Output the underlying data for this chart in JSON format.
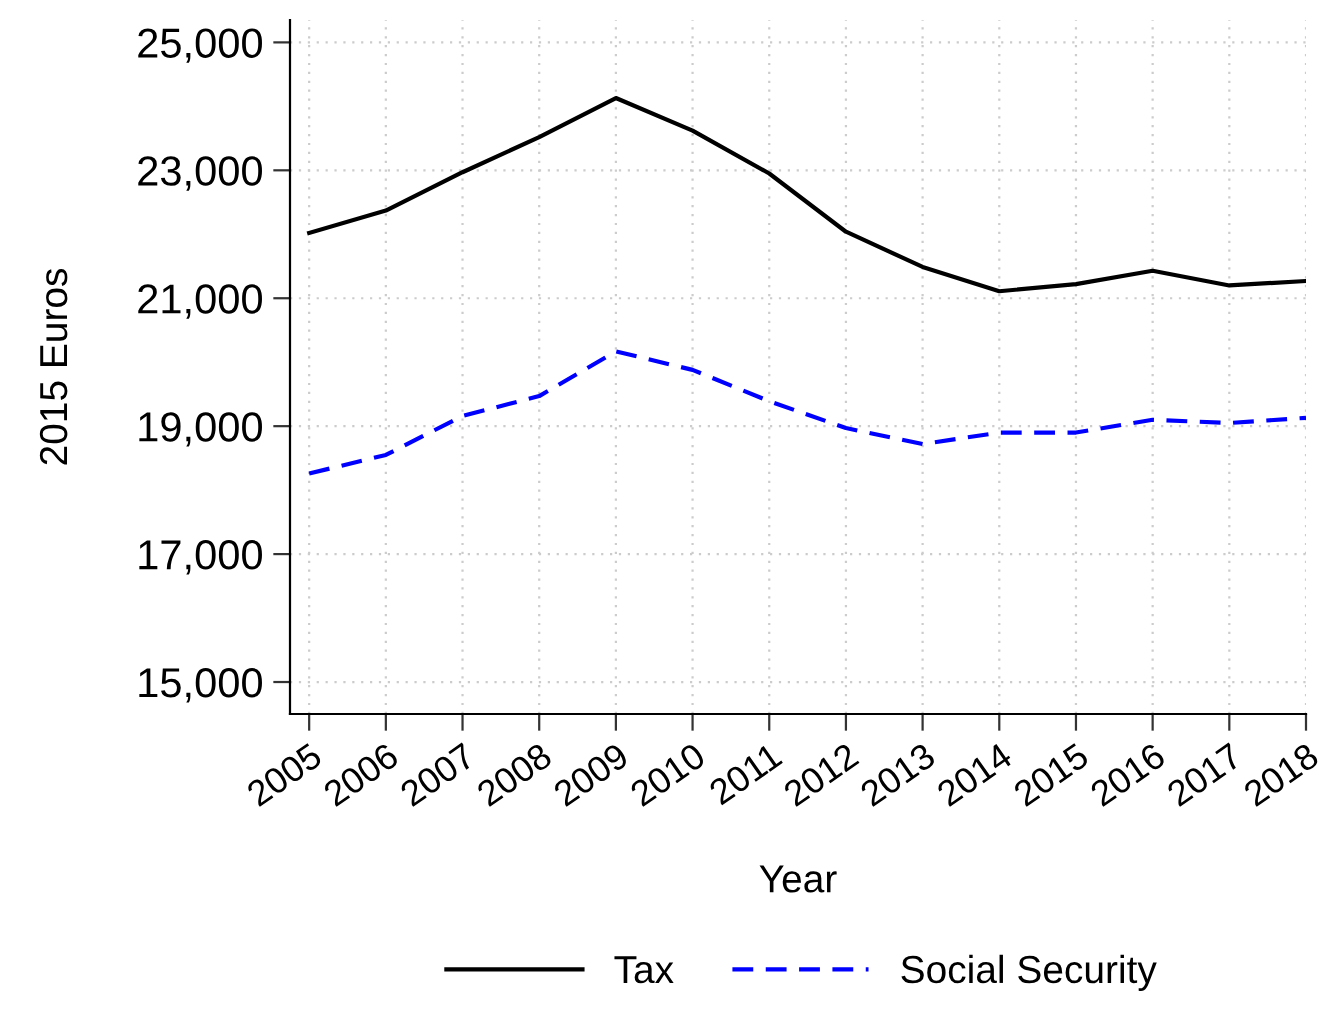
{
  "chart_data": {
    "type": "line",
    "xlabel": "Year",
    "ylabel": "2015 Euros",
    "x": [
      2005,
      2006,
      2007,
      2008,
      2009,
      2010,
      2011,
      2012,
      2013,
      2014,
      2015,
      2016,
      2017,
      2018
    ],
    "series": [
      {
        "name": "Tax",
        "color": "#000000",
        "line_style": "solid",
        "values": [
          22020,
          22370,
          22970,
          23520,
          24130,
          23620,
          22950,
          22040,
          21490,
          21110,
          21220,
          21430,
          21200,
          21270
        ]
      },
      {
        "name": "Social Security",
        "color": "#0000ff",
        "line_style": "dashed",
        "values": [
          18260,
          18550,
          19160,
          19470,
          20170,
          19880,
          19390,
          18970,
          18720,
          18900,
          18900,
          19100,
          19050,
          19130
        ]
      }
    ],
    "xlim": [
      2004.75,
      2018
    ],
    "xticks": [
      2005,
      2006,
      2007,
      2008,
      2009,
      2010,
      2011,
      2012,
      2013,
      2014,
      2015,
      2016,
      2017,
      2018
    ],
    "ylim": [
      14500,
      25350
    ],
    "yticks": [
      {
        "value": 15000,
        "label": "15,000"
      },
      {
        "value": 17000,
        "label": "17,000"
      },
      {
        "value": 19000,
        "label": "19,000"
      },
      {
        "value": 21000,
        "label": "21,000"
      },
      {
        "value": 23000,
        "label": "23,000"
      },
      {
        "value": 25000,
        "label": "25,000"
      }
    ],
    "grid": true,
    "legend": "bottom",
    "marker": "none"
  }
}
